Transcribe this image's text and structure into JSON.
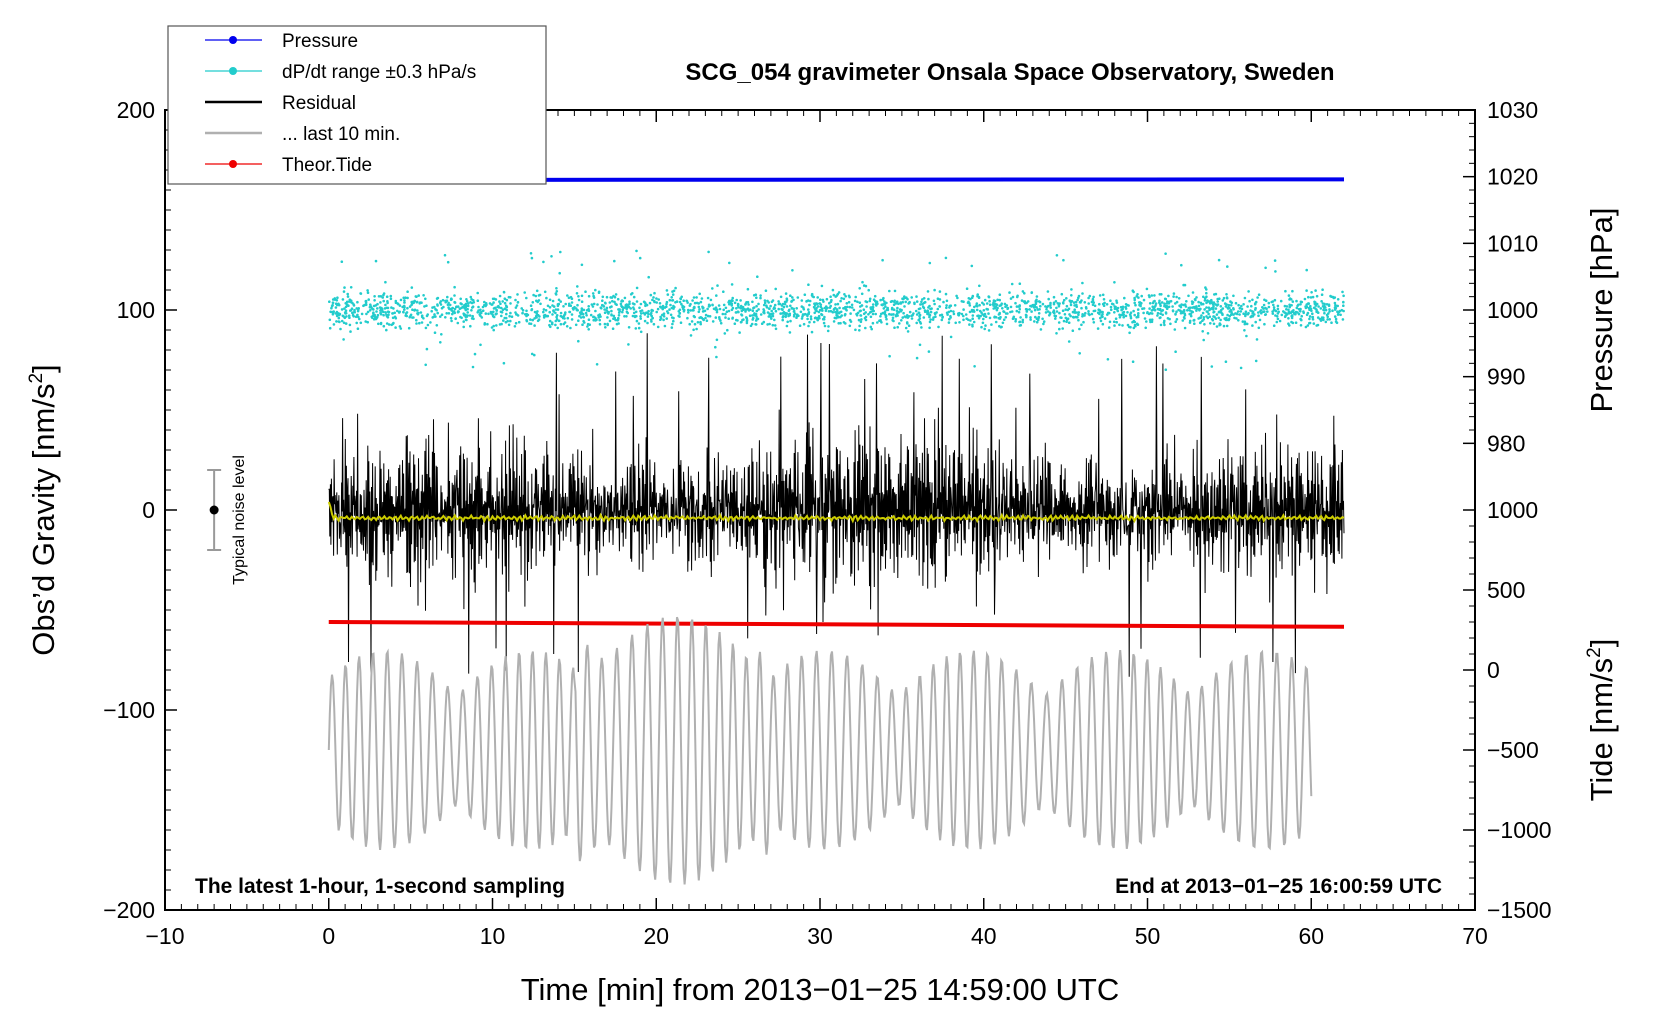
{
  "chart_data": {
    "type": "line",
    "title": "SCG_054 gravimeter Onsala Space Observatory, Sweden",
    "xlabel": "Time [min] from 2013−01−25 14:59:00 UTC",
    "ylabel_left_prefix": "Obs’d Gravity [nm/s",
    "ylabel_left_sup": "2",
    "ylabel_left_suffix": "]",
    "ylabel_right_pressure": "Pressure [hPa]",
    "ylabel_right_tide_prefix": "Tide [nm/s",
    "ylabel_right_tide_sup": "2",
    "ylabel_right_tide_suffix": "]",
    "xlim": [
      -10,
      70
    ],
    "ylim": [
      -200,
      200
    ],
    "x_ticks": [
      -10,
      0,
      10,
      20,
      30,
      40,
      50,
      60,
      70
    ],
    "x_tick_labels": [
      "−10",
      "0",
      "10",
      "20",
      "30",
      "40",
      "50",
      "60",
      "70"
    ],
    "y_ticks": [
      -200,
      -100,
      0,
      100,
      200
    ],
    "y_tick_labels": [
      "−200",
      "−100",
      "0",
      "100",
      "200"
    ],
    "pressure_axis": {
      "ticks": [
        980,
        990,
        1000,
        1010,
        1020,
        1030
      ],
      "tick_labels": [
        "980",
        "990",
        "1000",
        "1010",
        "1020",
        "1030"
      ],
      "gravity_ref": [
        100,
        200
      ],
      "pressure_ref": [
        1000,
        1030
      ]
    },
    "tide_axis": {
      "ticks": [
        -1500,
        -1000,
        -500,
        0,
        500,
        1000
      ],
      "tick_labels": [
        "−1500",
        "−1000",
        "−500",
        "0",
        "500",
        "1000"
      ],
      "gravity_ref": [
        -200,
        0
      ],
      "tide_ref": [
        -1500,
        1000
      ]
    },
    "legend": [
      {
        "name": "Pressure",
        "color": "#0000ee",
        "marker": "dot"
      },
      {
        "name": "dP/dt range ±0.3 hPa/s",
        "color": "#22cccc",
        "marker": "dot"
      },
      {
        "name": "Residual",
        "color": "#000000",
        "marker": "line"
      },
      {
        "name": "... last 10 min.",
        "color": "#b0b0b0",
        "marker": "line"
      },
      {
        "name": "Theor.Tide",
        "color": "#ee0000",
        "marker": "dot"
      }
    ],
    "series": [
      {
        "name": "Pressure",
        "color": "#0000ee",
        "x": [
          0,
          62
        ],
        "y_pressure": [
          1019.5,
          1019.6
        ]
      },
      {
        "name": "dP/dt range ±0.3 hPa/s",
        "color": "#22cccc",
        "x_range": [
          0,
          62
        ],
        "center_gravity": 100,
        "spread_gravity": 30
      },
      {
        "name": "Residual",
        "color": "#000000",
        "x_range": [
          0,
          62
        ],
        "center_gravity": 0,
        "amplitude_gravity": 40,
        "max_excursion": 90
      },
      {
        "name": "Residual (smoothed)",
        "color": "#cccc00",
        "x_range": [
          0,
          62
        ],
        "center_gravity": -4
      },
      {
        "name": "Theor.Tide",
        "color": "#ee0000",
        "x": [
          0,
          62
        ],
        "y_tide": [
          300,
          270
        ]
      },
      {
        "name": "... last 10 min.",
        "color": "#b0b0b0",
        "x_range": [
          0,
          60
        ],
        "center_gravity": -120,
        "amplitude_gravity": 50,
        "min_gravity": -195
      }
    ],
    "noise_marker": {
      "x": -7,
      "center": 0,
      "range": [
        -20,
        20
      ],
      "label": "Typical noise level"
    },
    "annotations": {
      "bottom_left": "The latest 1-hour, 1-second sampling",
      "bottom_right": "End at 2013−01−25 16:00:59 UTC"
    }
  }
}
